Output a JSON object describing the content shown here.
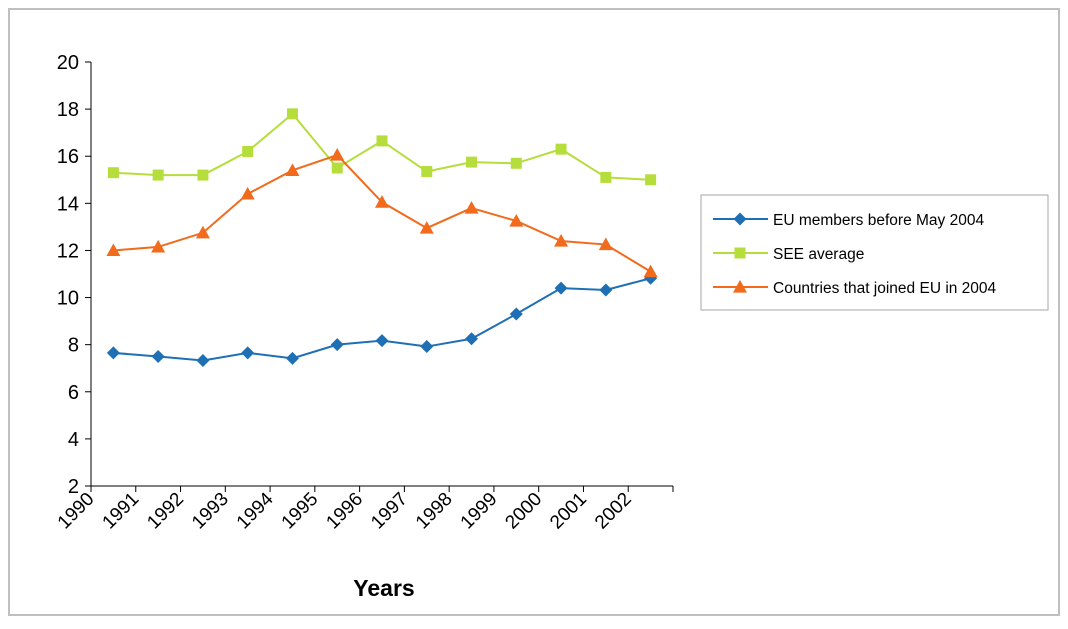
{
  "chart_data": {
    "type": "line",
    "title": "",
    "xlabel": "Years",
    "ylabel": "",
    "categories": [
      "1990",
      "1991",
      "1992",
      "1993",
      "1994",
      "1995",
      "1996",
      "1997",
      "1998",
      "1999",
      "2000",
      "2001",
      "2002"
    ],
    "ylim": [
      2,
      20
    ],
    "yticks": [
      2,
      4,
      6,
      8,
      10,
      12,
      14,
      16,
      18,
      20
    ],
    "grid": false,
    "legend_position": "right",
    "series": [
      {
        "name": "EU members before May 2004",
        "color": "#1f6fb5",
        "marker": "diamond",
        "values": [
          7.65,
          7.5,
          7.33,
          7.65,
          7.42,
          8.0,
          8.17,
          7.92,
          8.25,
          9.3,
          10.4,
          10.32,
          10.82
        ]
      },
      {
        "name": "SEE average",
        "color": "#b5dd3b",
        "marker": "square",
        "values": [
          15.3,
          15.2,
          15.2,
          16.2,
          17.8,
          15.5,
          16.65,
          15.35,
          15.75,
          15.7,
          16.3,
          15.1,
          15.0
        ]
      },
      {
        "name": "Countries that joined EU in 2004",
        "color": "#f26a1b",
        "marker": "triangle",
        "values": [
          12.0,
          12.15,
          12.75,
          14.4,
          15.4,
          16.05,
          14.05,
          12.95,
          13.8,
          13.25,
          12.4,
          12.25,
          11.1
        ]
      }
    ]
  }
}
